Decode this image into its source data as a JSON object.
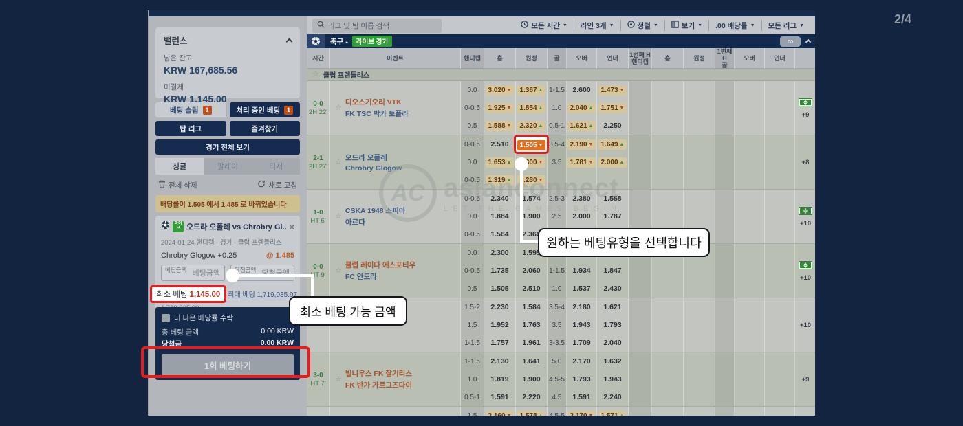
{
  "page": {
    "step_indicator": "2/4"
  },
  "sidebar": {
    "balance": {
      "title": "밸런스",
      "remaining_label": "남은 잔고",
      "remaining_value": "KRW 167,685.56",
      "unsettled_label": "미결제",
      "unsettled_value": "KRW 1,145.00"
    },
    "nav": {
      "bet_slip": "베팅 슬립",
      "bet_slip_count": "1",
      "pending_bets": "처리 중인 베팅",
      "pending_bets_count": "1",
      "top_leagues": "탑 리그",
      "favorites": "즐겨찾기",
      "view_all_matches": "경기 전체 보기"
    },
    "slip_tabs": [
      {
        "label": "싱글",
        "active": true
      },
      {
        "label": "팔레이",
        "active": false
      },
      {
        "label": "티저",
        "active": false
      }
    ],
    "clear_all": "전체 삭제",
    "refresh": "새로 고침",
    "odds_change_alert": "배당률이 1.505 에서 1.485 로 바뀌었습니다",
    "bet_card": {
      "live_badge": "라이브",
      "title": "오드라 오폴레 vs Chrobry Gl... 2:1",
      "meta": "2024-01-24 핸디캡 - 경기 - 클럽 프렌들리스",
      "selection": "Chrobry Glogow +0.25",
      "odds": "@ 1.485",
      "stake_label": "베팅금액",
      "stake_placeholder": "베팅금액",
      "payout_label": "당첨금액",
      "payout_placeholder": "당첨금액",
      "min_bet_label": "최소 베팅",
      "min_bet_value": "1,145.00",
      "max_bet_link": "최대 베팅 1,719,035.97",
      "max_line_partial": "1,719,035.00"
    },
    "summary": {
      "accept_better_odds": "더 나은 배당률 수락",
      "total_stake_label": "총 베팅 금액",
      "total_stake_value": "0.00 KRW",
      "payout_label": "당첨금",
      "payout_value": "0.00 KRW",
      "place_bet_button": "1회 베팅하기"
    }
  },
  "topbar": {
    "search_placeholder": "리그 및 팀 이름 검색",
    "filters": [
      {
        "icon": "clock-icon",
        "label": "모든 시간"
      },
      {
        "icon": null,
        "label": "라인 3개"
      },
      {
        "icon": "sort-icon",
        "label": "정렬"
      },
      {
        "icon": "view-icon",
        "label": "보기"
      },
      {
        "icon": null,
        "label": ".00 배당률"
      },
      {
        "icon": null,
        "label": "모든 리그"
      }
    ]
  },
  "sport_header": {
    "title": "축구 -",
    "live_badge": "라이브 경기",
    "infinity": "∞"
  },
  "table": {
    "columns": [
      "시간",
      "이벤트",
      "핸디캡",
      "홈",
      "원정",
      "골",
      "오버",
      "언더",
      "1번째 H\n핸디캡",
      "홈",
      "원정",
      "1번째 H\n골",
      "오버",
      "언더",
      ""
    ],
    "league": "클럽 프렌들리스",
    "rows": [
      {
        "score": "0-0",
        "clock": "2H 22'",
        "team1": "디오스기오리 VTK",
        "team2": "FK TSC 박카 토폴라",
        "team1_color": "orange",
        "team2_color": "blue",
        "badge": {
          "pitch_icon": true,
          "label": "+9"
        },
        "lines": [
          {
            "hc": "0.0",
            "home": {
              "v": "3.020",
              "d": "down",
              "hl": true
            },
            "away": {
              "v": "1.367",
              "d": "up",
              "hl": true
            },
            "goal": "1-1.5",
            "over": {
              "v": "2.600"
            },
            "under": {
              "v": "1.473",
              "d": "down",
              "hl": true
            }
          },
          {
            "hc": "0-0.5",
            "home": {
              "v": "1.925",
              "d": "down",
              "hl": true
            },
            "away": {
              "v": "1.854",
              "d": "up",
              "hl": true
            },
            "goal": "1.0",
            "over": {
              "v": "2.040",
              "d": "up",
              "hl": true
            },
            "under": {
              "v": "1.751",
              "d": "down",
              "hl": true
            }
          },
          {
            "hc": "0.5",
            "home": {
              "v": "1.588",
              "d": "down",
              "hl": true
            },
            "away": {
              "v": "2.320",
              "d": "up",
              "hl": true
            },
            "goal": "0.5-1",
            "over": {
              "v": "1.621",
              "d": "up",
              "hl": true
            },
            "under": {
              "v": "2.250"
            }
          }
        ]
      },
      {
        "score": "2-1",
        "clock": "2H 27'",
        "team1": "오드라 오폴레",
        "team2": "Chrobry Glogow",
        "team1_color": "blue",
        "team2_color": "blue",
        "badge": {
          "pitch_icon": false,
          "label": "+8"
        },
        "lines": [
          {
            "hc": "0-0.5",
            "home": {
              "v": "2.510"
            },
            "away": {
              "v": "1.505",
              "d": "down",
              "sel": true
            },
            "goal": "3.5-4",
            "over": {
              "v": "2.190",
              "d": "down",
              "hl": true
            },
            "under": {
              "v": "1.649",
              "d": "up",
              "hl": true
            }
          },
          {
            "hc": "0.0",
            "home": {
              "v": "1.653",
              "d": "up",
              "hl": true
            },
            "away": {
              "v": "2.300",
              "d": "down",
              "hl": true
            },
            "goal": "3.5",
            "over": {
              "v": "1.781",
              "d": "down",
              "hl": true
            },
            "under": {
              "v": "2.000",
              "d": "up",
              "hl": true
            }
          },
          {
            "hc": "0-0.5",
            "home": {
              "v": "1.319",
              "d": "up",
              "hl": true
            },
            "away": {
              "v": "3.280",
              "d": "down",
              "hl": true
            },
            "goal": "",
            "over": null,
            "under": null
          }
        ]
      },
      {
        "score": "1-0",
        "clock": "HT 6'",
        "team1": "CSKA 1948 소피아",
        "team2": "아르다",
        "team1_color": "blue",
        "team2_color": "blue",
        "badge": {
          "pitch_icon": true,
          "label": "+10"
        },
        "lines": [
          {
            "hc": "0-0.5",
            "home": {
              "v": "2.340"
            },
            "away": {
              "v": "1.574"
            },
            "goal": "2.5-3",
            "over": {
              "v": "2.380"
            },
            "under": {
              "v": "1.558"
            }
          },
          {
            "hc": "0.0",
            "home": {
              "v": "1.884"
            },
            "away": {
              "v": "1.900"
            },
            "goal": "2.5",
            "over": {
              "v": "2.000"
            },
            "under": {
              "v": "1.787"
            }
          },
          {
            "hc": "0-0.5",
            "home": {
              "v": "1.564"
            },
            "away": {
              "v": "2.360"
            },
            "goal": "",
            "over": null,
            "under": null
          }
        ]
      },
      {
        "score": "0-0",
        "clock": "HT 9'",
        "team1": "클럽 레이다 에스포티우",
        "team2": "FC 안도라",
        "team1_color": "orange",
        "team2_color": "blue",
        "badge": {
          "pitch_icon": true,
          "label": "+10"
        },
        "lines": [
          {
            "hc": "0.0",
            "home": {
              "v": "2.300"
            },
            "away": {
              "v": "1.595"
            },
            "goal": "",
            "over": null,
            "under": null
          },
          {
            "hc": "0-0.5",
            "home": {
              "v": "1.735"
            },
            "away": {
              "v": "2.060"
            },
            "goal": "1-1.5",
            "over": {
              "v": "1.934"
            },
            "under": {
              "v": "1.847"
            }
          },
          {
            "hc": "0.5",
            "home": {
              "v": "1.505"
            },
            "away": {
              "v": "2.510"
            },
            "goal": "1.0",
            "over": {
              "v": "1.537"
            },
            "under": {
              "v": "2.430"
            }
          }
        ]
      },
      {
        "score": "",
        "clock": "",
        "team1": "",
        "team2": "",
        "team1_color": "orange",
        "team2_color": "blue",
        "badge": {
          "pitch_icon": false,
          "label": "+10"
        },
        "lines": [
          {
            "hc": "1.5-2",
            "home": {
              "v": "2.230"
            },
            "away": {
              "v": "1.584"
            },
            "goal": "3.5-4",
            "over": {
              "v": "2.180"
            },
            "under": {
              "v": "1.621"
            }
          },
          {
            "hc": "1.5",
            "home": {
              "v": "1.952"
            },
            "away": {
              "v": "1.763"
            },
            "goal": "3.5",
            "over": {
              "v": "1.943"
            },
            "under": {
              "v": "1.793"
            }
          },
          {
            "hc": "1-1.5",
            "home": {
              "v": "1.757"
            },
            "away": {
              "v": "1.961"
            },
            "goal": "3-3.5",
            "over": {
              "v": "1.709"
            },
            "under": {
              "v": "2.040"
            }
          }
        ]
      },
      {
        "score": "3-0",
        "clock": "HT 7'",
        "team1": "빌니우스 FK 잘기리스",
        "team2": "FK 반가 가르그즈다이",
        "team1_color": "orange",
        "team2_color": "orange",
        "badge": {
          "pitch_icon": false,
          "label": "+9"
        },
        "lines": [
          {
            "hc": "1-1.5",
            "home": {
              "v": "2.130"
            },
            "away": {
              "v": "1.641"
            },
            "goal": "5.0",
            "over": {
              "v": "2.170"
            },
            "under": {
              "v": "1.632"
            }
          },
          {
            "hc": "1.0",
            "home": {
              "v": "1.819"
            },
            "away": {
              "v": "1.900"
            },
            "goal": "4.5-5",
            "over": {
              "v": "1.793"
            },
            "under": {
              "v": "1.943"
            }
          },
          {
            "hc": "0.5-1",
            "home": {
              "v": "1.591"
            },
            "away": {
              "v": "2.220"
            },
            "goal": "4.5",
            "over": {
              "v": "1.591"
            },
            "under": {
              "v": "2.240"
            }
          }
        ]
      },
      {
        "score": "",
        "clock": "",
        "team1": "",
        "team2": "",
        "team1_color": "blue",
        "team2_color": "blue",
        "badge": {
          "pitch_icon": false,
          "label": ""
        },
        "lines": [
          {
            "hc": "1.5",
            "home": {
              "v": "2.160",
              "d": "down",
              "hl": true
            },
            "away": {
              "v": "1.578",
              "d": "up",
              "hl": true
            },
            "goal": "4.5-5",
            "over": {
              "v": "2.170",
              "d": "down",
              "hl": true
            },
            "under": {
              "v": "1.571",
              "d": "up",
              "hl": true
            }
          }
        ]
      }
    ]
  },
  "watermark": {
    "brand": "asianconnect",
    "tagline": "LET THE GAMES BEGIN"
  },
  "callouts": {
    "select_bet_type": "원하는 베팅유형을 선택합니다",
    "min_bet_amount": "최소 베팅 가능 금액"
  },
  "colors": {
    "annotation_red": "#e81c1c",
    "selected_odds_orange": "#e0701d",
    "live_green": "#2f9e33",
    "odds_up_green": "#3e8d3e",
    "odds_down_red": "#b8432a",
    "navy": "#152c50"
  }
}
